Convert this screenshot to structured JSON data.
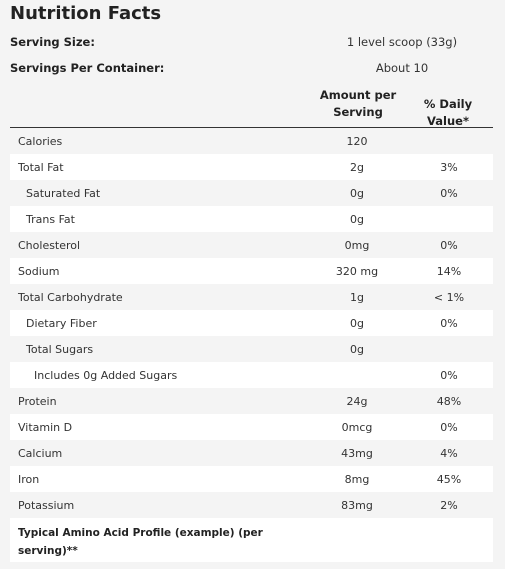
{
  "title": "Nutrition Facts",
  "serving_size": {
    "label": "Serving Size:",
    "value": "1 level scoop (33g)"
  },
  "servings_per_container": {
    "label": "Servings Per Container:",
    "value": "About 10"
  },
  "columns": {
    "amount": "Amount per Serving",
    "daily_value": "% Daily Value*"
  },
  "rows": [
    {
      "name": "Calories",
      "amount": "120",
      "dv": "",
      "indent": 0
    },
    {
      "name": "Total Fat",
      "amount": "2g",
      "dv": "3%",
      "indent": 0
    },
    {
      "name": "Saturated Fat",
      "amount": "0g",
      "dv": "0%",
      "indent": 1
    },
    {
      "name": "Trans Fat",
      "amount": "0g",
      "dv": "",
      "indent": 1
    },
    {
      "name": "Cholesterol",
      "amount": "0mg",
      "dv": "0%",
      "indent": 0
    },
    {
      "name": "Sodium",
      "amount": "320 mg",
      "dv": "14%",
      "indent": 0
    },
    {
      "name": "Total Carbohydrate",
      "amount": "1g",
      "dv": "< 1%",
      "indent": 0
    },
    {
      "name": "Dietary Fiber",
      "amount": "0g",
      "dv": "0%",
      "indent": 1
    },
    {
      "name": "Total Sugars",
      "amount": "0g",
      "dv": "",
      "indent": 1
    },
    {
      "name": "Includes 0g Added Sugars",
      "amount": "",
      "dv": "0%",
      "indent": 2
    },
    {
      "name": "Protein",
      "amount": "24g",
      "dv": "48%",
      "indent": 0
    },
    {
      "name": "Vitamin D",
      "amount": "0mcg",
      "dv": "0%",
      "indent": 0
    },
    {
      "name": "Calcium",
      "amount": "43mg",
      "dv": "4%",
      "indent": 0
    },
    {
      "name": "Iron",
      "amount": "8mg",
      "dv": "45%",
      "indent": 0
    },
    {
      "name": "Potassium",
      "amount": "83mg",
      "dv": "2%",
      "indent": 0
    }
  ],
  "footer": {
    "text": "Typical Amino Acid Profile (example) (per serving)**"
  }
}
